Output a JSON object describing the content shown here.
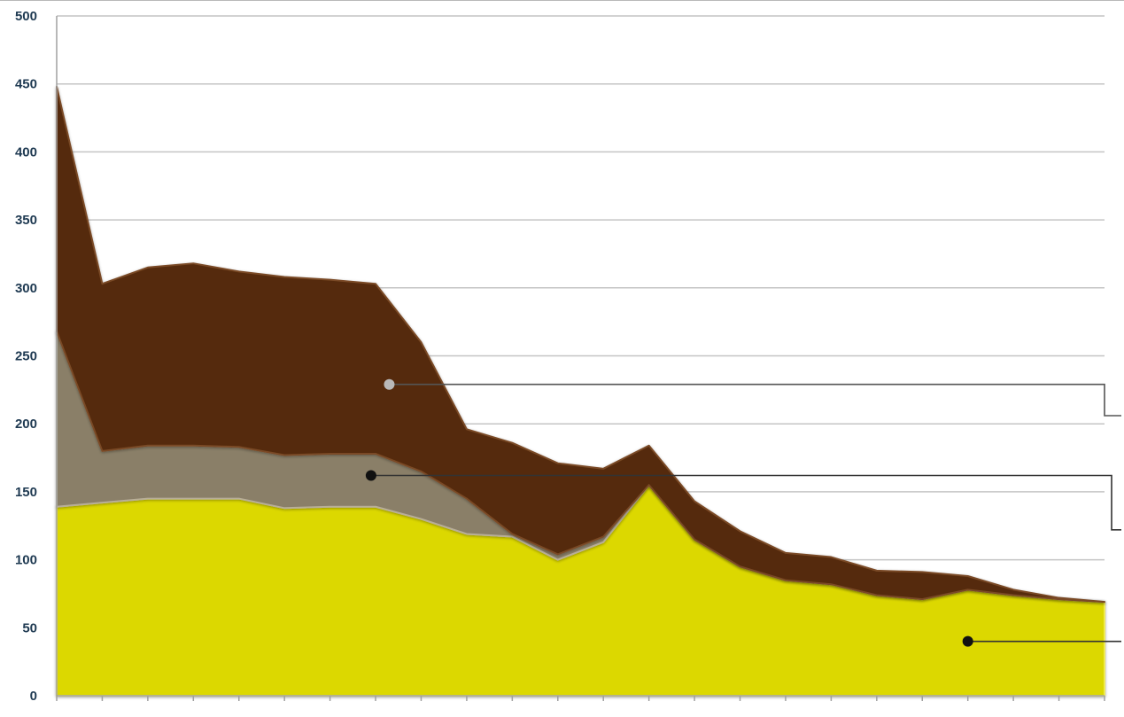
{
  "chart_data": {
    "type": "area",
    "stacked": true,
    "title": "",
    "xlabel": "",
    "ylabel": "",
    "ylim": [
      0,
      500
    ],
    "y_ticks": [
      0,
      50,
      100,
      150,
      200,
      250,
      300,
      350,
      400,
      450,
      500
    ],
    "grid": true,
    "legend": "none",
    "x_count": 24,
    "series": [
      {
        "color": "#dcd800",
        "values": [
          139,
          142,
          145,
          145,
          145,
          138,
          139,
          139,
          130,
          119,
          117,
          100,
          113,
          155,
          115,
          95,
          85,
          82,
          74,
          71,
          78,
          74,
          71,
          69
        ]
      },
      {
        "color": "#8a7f68",
        "values": [
          129,
          38,
          39,
          39,
          38,
          39,
          39,
          39,
          35,
          26,
          2,
          4,
          4,
          0,
          0,
          0,
          0,
          0,
          0,
          0,
          0,
          0,
          0,
          0
        ]
      },
      {
        "color": "#552b08",
        "values": [
          180,
          123,
          131,
          134,
          129,
          131,
          128,
          125,
          95,
          51,
          67,
          67,
          50,
          29,
          28,
          26,
          20,
          20,
          18,
          20,
          10,
          4,
          1,
          0
        ]
      }
    ],
    "callouts": [
      {
        "point_x": 7.3,
        "point_y": 229,
        "dot_color": "#b9b9b9",
        "line_color": "#555555",
        "target_y": 206
      },
      {
        "point_x": 6.9,
        "point_y": 162,
        "dot_color": "#111111",
        "line_color": "#333333",
        "target_y": 122
      },
      {
        "point_x": 20.0,
        "point_y": 40,
        "dot_color": "#111111",
        "line_color": "#333333",
        "target_y": 40
      }
    ]
  }
}
